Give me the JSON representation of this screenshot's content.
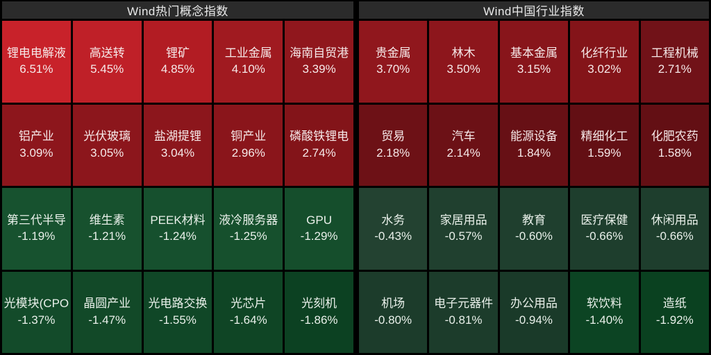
{
  "chart_data": {
    "type": "heatmap",
    "legend": "red = gain, green = loss; brightness scales with magnitude",
    "sections": [
      {
        "title": "Wind热门概念指数",
        "columns": 5,
        "rows": 4,
        "cells": [
          {
            "name": "锂电电解液",
            "value": "6.51%",
            "pct": 6.51,
            "color": "#c8222a"
          },
          {
            "name": "高送转",
            "value": "5.45%",
            "pct": 5.45,
            "color": "#bf2028"
          },
          {
            "name": "锂矿",
            "value": "4.85%",
            "pct": 4.85,
            "color": "#b21c23"
          },
          {
            "name": "工业金属",
            "value": "4.10%",
            "pct": 4.1,
            "color": "#a01a20"
          },
          {
            "name": "海南自贸港",
            "value": "3.39%",
            "pct": 3.39,
            "color": "#90171d"
          },
          {
            "name": "铝产业",
            "value": "3.09%",
            "pct": 3.09,
            "color": "#8d161c"
          },
          {
            "name": "光伏玻璃",
            "value": "3.05%",
            "pct": 3.05,
            "color": "#8c161c"
          },
          {
            "name": "盐湖提锂",
            "value": "3.04%",
            "pct": 3.04,
            "color": "#8c161c"
          },
          {
            "name": "铜产业",
            "value": "2.96%",
            "pct": 2.96,
            "color": "#8a151b"
          },
          {
            "name": "磷酸铁锂电",
            "value": "2.74%",
            "pct": 2.74,
            "color": "#831419"
          },
          {
            "name": "第三代半导",
            "value": "-1.19%",
            "pct": -1.19,
            "color": "#17522f"
          },
          {
            "name": "维生素",
            "value": "-1.21%",
            "pct": -1.21,
            "color": "#17512e"
          },
          {
            "name": "PEEK材料",
            "value": "-1.24%",
            "pct": -1.24,
            "color": "#16502e"
          },
          {
            "name": "液冷服务器",
            "value": "-1.25%",
            "pct": -1.25,
            "color": "#16502d"
          },
          {
            "name": "GPU",
            "value": "-1.29%",
            "pct": -1.29,
            "color": "#154e2c"
          },
          {
            "name": "光模块(CPO",
            "value": "-1.37%",
            "pct": -1.37,
            "color": "#134b2a"
          },
          {
            "name": "晶圆产业",
            "value": "-1.47%",
            "pct": -1.47,
            "color": "#124928"
          },
          {
            "name": "光电路交换",
            "value": "-1.55%",
            "pct": -1.55,
            "color": "#104727"
          },
          {
            "name": "光芯片",
            "value": "-1.64%",
            "pct": -1.64,
            "color": "#0f4525"
          },
          {
            "name": "光刻机",
            "value": "-1.86%",
            "pct": -1.86,
            "color": "#0c4122"
          }
        ]
      },
      {
        "title": "Wind中国行业指数",
        "columns": 5,
        "rows": 4,
        "cells": [
          {
            "name": "贵金属",
            "value": "3.70%",
            "pct": 3.7,
            "color": "#90171d"
          },
          {
            "name": "林木",
            "value": "3.50%",
            "pct": 3.5,
            "color": "#8d161c"
          },
          {
            "name": "基本金属",
            "value": "3.15%",
            "pct": 3.15,
            "color": "#88151b"
          },
          {
            "name": "化纤行业",
            "value": "3.02%",
            "pct": 3.02,
            "color": "#841419"
          },
          {
            "name": "工程机械",
            "value": "2.71%",
            "pct": 2.71,
            "color": "#711218"
          },
          {
            "name": "贸易",
            "value": "2.18%",
            "pct": 2.18,
            "color": "#6d1116"
          },
          {
            "name": "汽车",
            "value": "2.14%",
            "pct": 2.14,
            "color": "#6c1116"
          },
          {
            "name": "能源设备",
            "value": "1.84%",
            "pct": 1.84,
            "color": "#671015"
          },
          {
            "name": "精细化工",
            "value": "1.59%",
            "pct": 1.59,
            "color": "#630f14"
          },
          {
            "name": "化肥农药",
            "value": "1.58%",
            "pct": 1.58,
            "color": "#630f14"
          },
          {
            "name": "水务",
            "value": "-0.43%",
            "pct": -0.43,
            "color": "#234231"
          },
          {
            "name": "家居用品",
            "value": "-0.57%",
            "pct": -0.57,
            "color": "#20402f"
          },
          {
            "name": "教育",
            "value": "-0.60%",
            "pct": -0.6,
            "color": "#1f3f2e"
          },
          {
            "name": "医疗保健",
            "value": "-0.66%",
            "pct": -0.66,
            "color": "#1e3e2d"
          },
          {
            "name": "休闲用品",
            "value": "-0.66%",
            "pct": -0.66,
            "color": "#1e3e2d"
          },
          {
            "name": "机场",
            "value": "-0.80%",
            "pct": -0.8,
            "color": "#1c3c2b"
          },
          {
            "name": "电子元器件",
            "value": "-0.81%",
            "pct": -0.81,
            "color": "#1c3c2b"
          },
          {
            "name": "办公用品",
            "value": "-0.94%",
            "pct": -0.94,
            "color": "#1a3a29"
          },
          {
            "name": "软饮料",
            "value": "-1.40%",
            "pct": -1.4,
            "color": "#0c4423"
          },
          {
            "name": "造纸",
            "value": "-1.92%",
            "pct": -1.92,
            "color": "#0a4120"
          }
        ]
      }
    ]
  },
  "colors": {
    "background": "#000000",
    "header_bg": "#2b2b2b",
    "header_text": "#e9e9e9",
    "gain_text": "#f6e9e9",
    "loss_text": "#e9f0ea"
  }
}
